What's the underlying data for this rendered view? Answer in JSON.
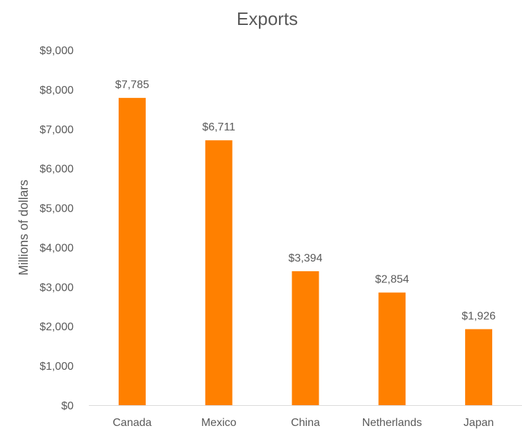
{
  "chart_data": {
    "type": "bar",
    "title": "Exports",
    "xlabel": "",
    "ylabel": "Millions of dollars",
    "categories": [
      "Canada",
      "Mexico",
      "China",
      "Netherlands",
      "Japan"
    ],
    "values": [
      7785,
      6711,
      3394,
      2854,
      1926
    ],
    "value_labels": [
      "$7,785",
      "$6,711",
      "$3,394",
      "$2,854",
      "$1,926"
    ],
    "ylim": [
      0,
      9000
    ],
    "yticks": [
      0,
      1000,
      2000,
      3000,
      4000,
      5000,
      6000,
      7000,
      8000,
      9000
    ],
    "ytick_labels": [
      "$0",
      "$1,000",
      "$2,000",
      "$3,000",
      "$4,000",
      "$5,000",
      "$6,000",
      "$7,000",
      "$8,000",
      "$9,000"
    ],
    "grid": false,
    "legend": "none",
    "bar_color": "#ff8000",
    "axis_color": "#d9d9d9"
  }
}
